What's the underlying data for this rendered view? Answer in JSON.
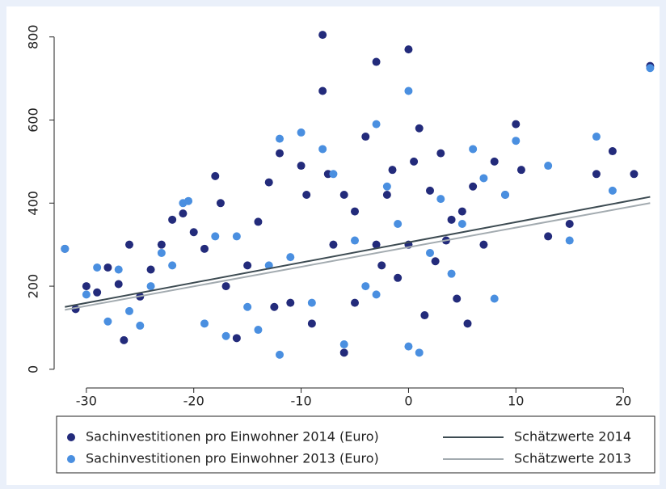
{
  "chart_data": {
    "type": "scatter",
    "xlim": [
      -33,
      23.3
    ],
    "ylim": [
      -45,
      850
    ],
    "xticks": [
      -30,
      -20,
      -10,
      0,
      10,
      20
    ],
    "yticks": [
      0,
      200,
      400,
      600,
      800
    ],
    "legend": "bottom",
    "series": [
      {
        "name": "Sachinvestitionen pro Einwohner 2014 (Euro)",
        "type": "scatter",
        "color": "#232b7b",
        "x": [
          -32,
          -31,
          -30,
          -29,
          -28,
          -27,
          -26.5,
          -26,
          -25,
          -24,
          -23,
          -22,
          -21,
          -20,
          -19,
          -18,
          -17.5,
          -17,
          -16,
          -15,
          -14,
          -13,
          -12.5,
          -12,
          -11,
          -10,
          -9.5,
          -9,
          -8,
          -8,
          -7.5,
          -7,
          -6,
          -6,
          -5,
          -5,
          -4,
          -3,
          -3,
          -2.5,
          -2,
          -1.5,
          -1,
          0,
          0,
          0.5,
          1,
          1.5,
          2,
          2.5,
          3,
          3.5,
          4,
          4.5,
          5,
          5.5,
          6,
          7,
          8,
          9,
          10,
          10.5,
          13,
          15,
          17.5,
          19,
          21,
          22.5
        ],
        "values": [
          290,
          145,
          200,
          185,
          245,
          205,
          70,
          300,
          175,
          240,
          300,
          360,
          375,
          330,
          290,
          465,
          400,
          200,
          75,
          250,
          355,
          450,
          150,
          520,
          160,
          490,
          420,
          110,
          805,
          670,
          470,
          300,
          420,
          40,
          380,
          160,
          560,
          740,
          300,
          250,
          420,
          480,
          220,
          770,
          300,
          500,
          580,
          130,
          430,
          260,
          520,
          310,
          360,
          170,
          380,
          110,
          440,
          300,
          500,
          420,
          590,
          480,
          320,
          350,
          470,
          525,
          470,
          730
        ]
      },
      {
        "name": "Sachinvestitionen pro Einwohner 2013 (Euro)",
        "type": "scatter",
        "color": "#4a8fe0",
        "x": [
          -32,
          -30,
          -29,
          -28,
          -27,
          -26,
          -25,
          -24,
          -23,
          -22,
          -21,
          -20.5,
          -19,
          -18,
          -17,
          -16,
          -15,
          -14,
          -13,
          -12,
          -12,
          -11,
          -10,
          -9,
          -8,
          -7,
          -6,
          -5,
          -4,
          -3,
          -3,
          -2,
          -1,
          0,
          0,
          1,
          2,
          3,
          4,
          5,
          6,
          7,
          8,
          9,
          10,
          13,
          15,
          17.5,
          19,
          22.5
        ],
        "values": [
          290,
          180,
          245,
          115,
          240,
          140,
          105,
          200,
          280,
          250,
          400,
          405,
          110,
          320,
          80,
          320,
          150,
          95,
          250,
          555,
          35,
          270,
          570,
          160,
          530,
          470,
          60,
          310,
          200,
          590,
          180,
          440,
          350,
          670,
          55,
          40,
          280,
          410,
          230,
          350,
          530,
          460,
          170,
          420,
          550,
          490,
          310,
          560,
          430,
          725
        ]
      },
      {
        "name": "Schätzwerte 2014",
        "type": "line",
        "color": "#3d4b52",
        "x": [
          -32,
          22.5
        ],
        "values": [
          150,
          415
        ]
      },
      {
        "name": "Schätzwerte 2013",
        "type": "line",
        "color": "#a3abb0",
        "x": [
          -32,
          22.5
        ],
        "values": [
          143,
          400
        ]
      }
    ]
  }
}
